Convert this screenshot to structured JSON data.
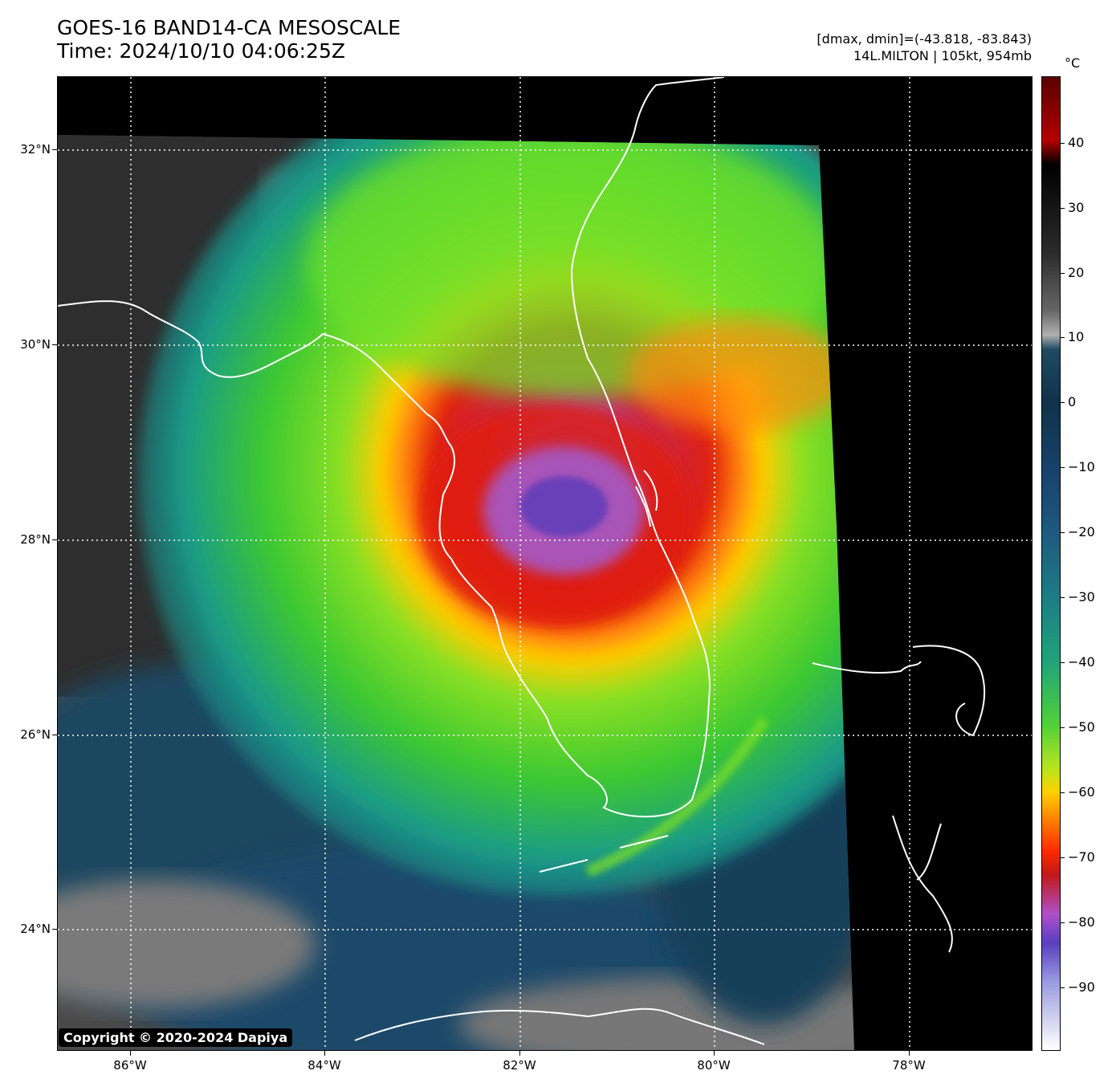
{
  "header": {
    "title_line1": "GOES-16 BAND14-CA MESOSCALE",
    "title_line2": "Time: 2024/10/10 04:06:25Z",
    "stats_line1": "[dmax, dmin]=(-43.818, -83.843)",
    "stats_line2": "14L.MILTON | 105kt, 954mb"
  },
  "map": {
    "lat_labels": [
      "32°N",
      "30°N",
      "28°N",
      "26°N",
      "24°N"
    ],
    "lon_labels": [
      "86°W",
      "84°W",
      "82°W",
      "80°W",
      "78°W"
    ],
    "gridlines": "dotted white",
    "storm_name": "14L.MILTON"
  },
  "colorbar": {
    "unit": "°C",
    "tick_labels": [
      "40",
      "30",
      "20",
      "10",
      "0",
      "−10",
      "−20",
      "−30",
      "−40",
      "−50",
      "−60",
      "−70",
      "−80",
      "−90"
    ]
  },
  "copyright": "Copyright © 2020-2024 Dapiya",
  "colors": {
    "coast": "#ffffff",
    "grid": "#ffffff",
    "eye_cold": "#8a5ad8",
    "ring_red": "#d81a10",
    "ring_green": "#7fe022"
  }
}
